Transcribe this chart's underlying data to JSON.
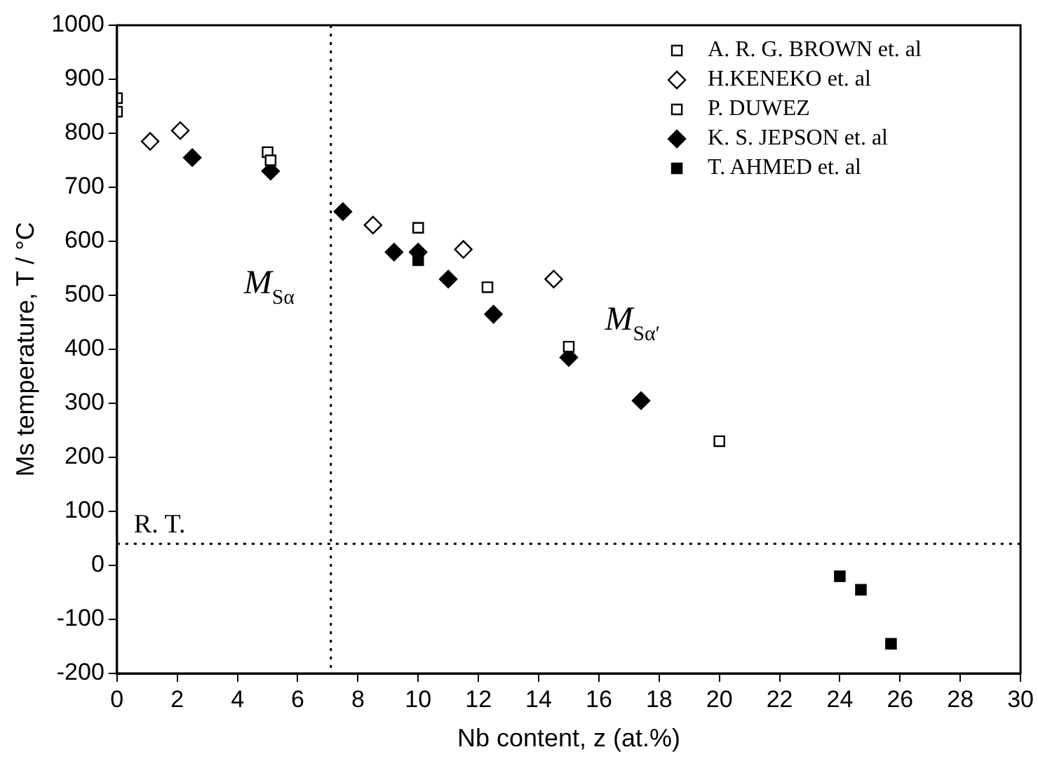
{
  "chart_data": {
    "type": "scatter",
    "xlabel": "Nb content, z (at.%)",
    "ylabel": "Ms temperature, T / °C",
    "xlim": [
      0,
      30
    ],
    "xticks": [
      0,
      2,
      4,
      6,
      8,
      10,
      12,
      14,
      16,
      18,
      20,
      22,
      24,
      26,
      28,
      30
    ],
    "ylim": [
      -200,
      1000
    ],
    "yticks": [
      -200,
      -100,
      0,
      100,
      200,
      300,
      400,
      500,
      600,
      700,
      800,
      900,
      1000
    ],
    "grid": false,
    "legend": "top right",
    "series": [
      {
        "name": "A. R. G. BROWN et. al",
        "color": "#ffffff",
        "marker": "square",
        "x": [
          0,
          5.1,
          12.3,
          15,
          20
        ],
        "values": [
          840,
          750,
          515,
          405,
          230
        ]
      },
      {
        "name": "H.KENEKO et. al",
        "color": "#ffffff",
        "marker": "diamond",
        "x": [
          1.1,
          2.1,
          8.5,
          11.5,
          14.5
        ],
        "values": [
          785,
          805,
          630,
          585,
          530
        ]
      },
      {
        "name": "P. DUWEZ",
        "color": "#ffffff",
        "marker": "square",
        "x": [
          0,
          5,
          10
        ],
        "values": [
          865,
          765,
          625
        ]
      },
      {
        "name": "K. S. JEPSON et. al",
        "color": "#000000",
        "marker": "diamond",
        "x": [
          2.5,
          5.1,
          7.5,
          9.2,
          10,
          11,
          12.5,
          15,
          17.4
        ],
        "values": [
          755,
          730,
          655,
          580,
          580,
          530,
          465,
          385,
          305
        ]
      },
      {
        "name": "T. AHMED et. al",
        "color": "#000000",
        "marker": "square",
        "x": [
          10,
          24,
          24.7,
          25.7
        ],
        "values": [
          565,
          -20,
          -45,
          -145
        ]
      }
    ],
    "ref_lines": [
      {
        "axis": "y",
        "value": 40,
        "label": "R. T.",
        "line_style": "dotted"
      },
      {
        "axis": "x",
        "value": 7.1,
        "label": "M$_{Sα}$",
        "line_style": "dotted"
      }
    ],
    "annotations": [
      "M$_{Sα′}$"
    ]
  }
}
